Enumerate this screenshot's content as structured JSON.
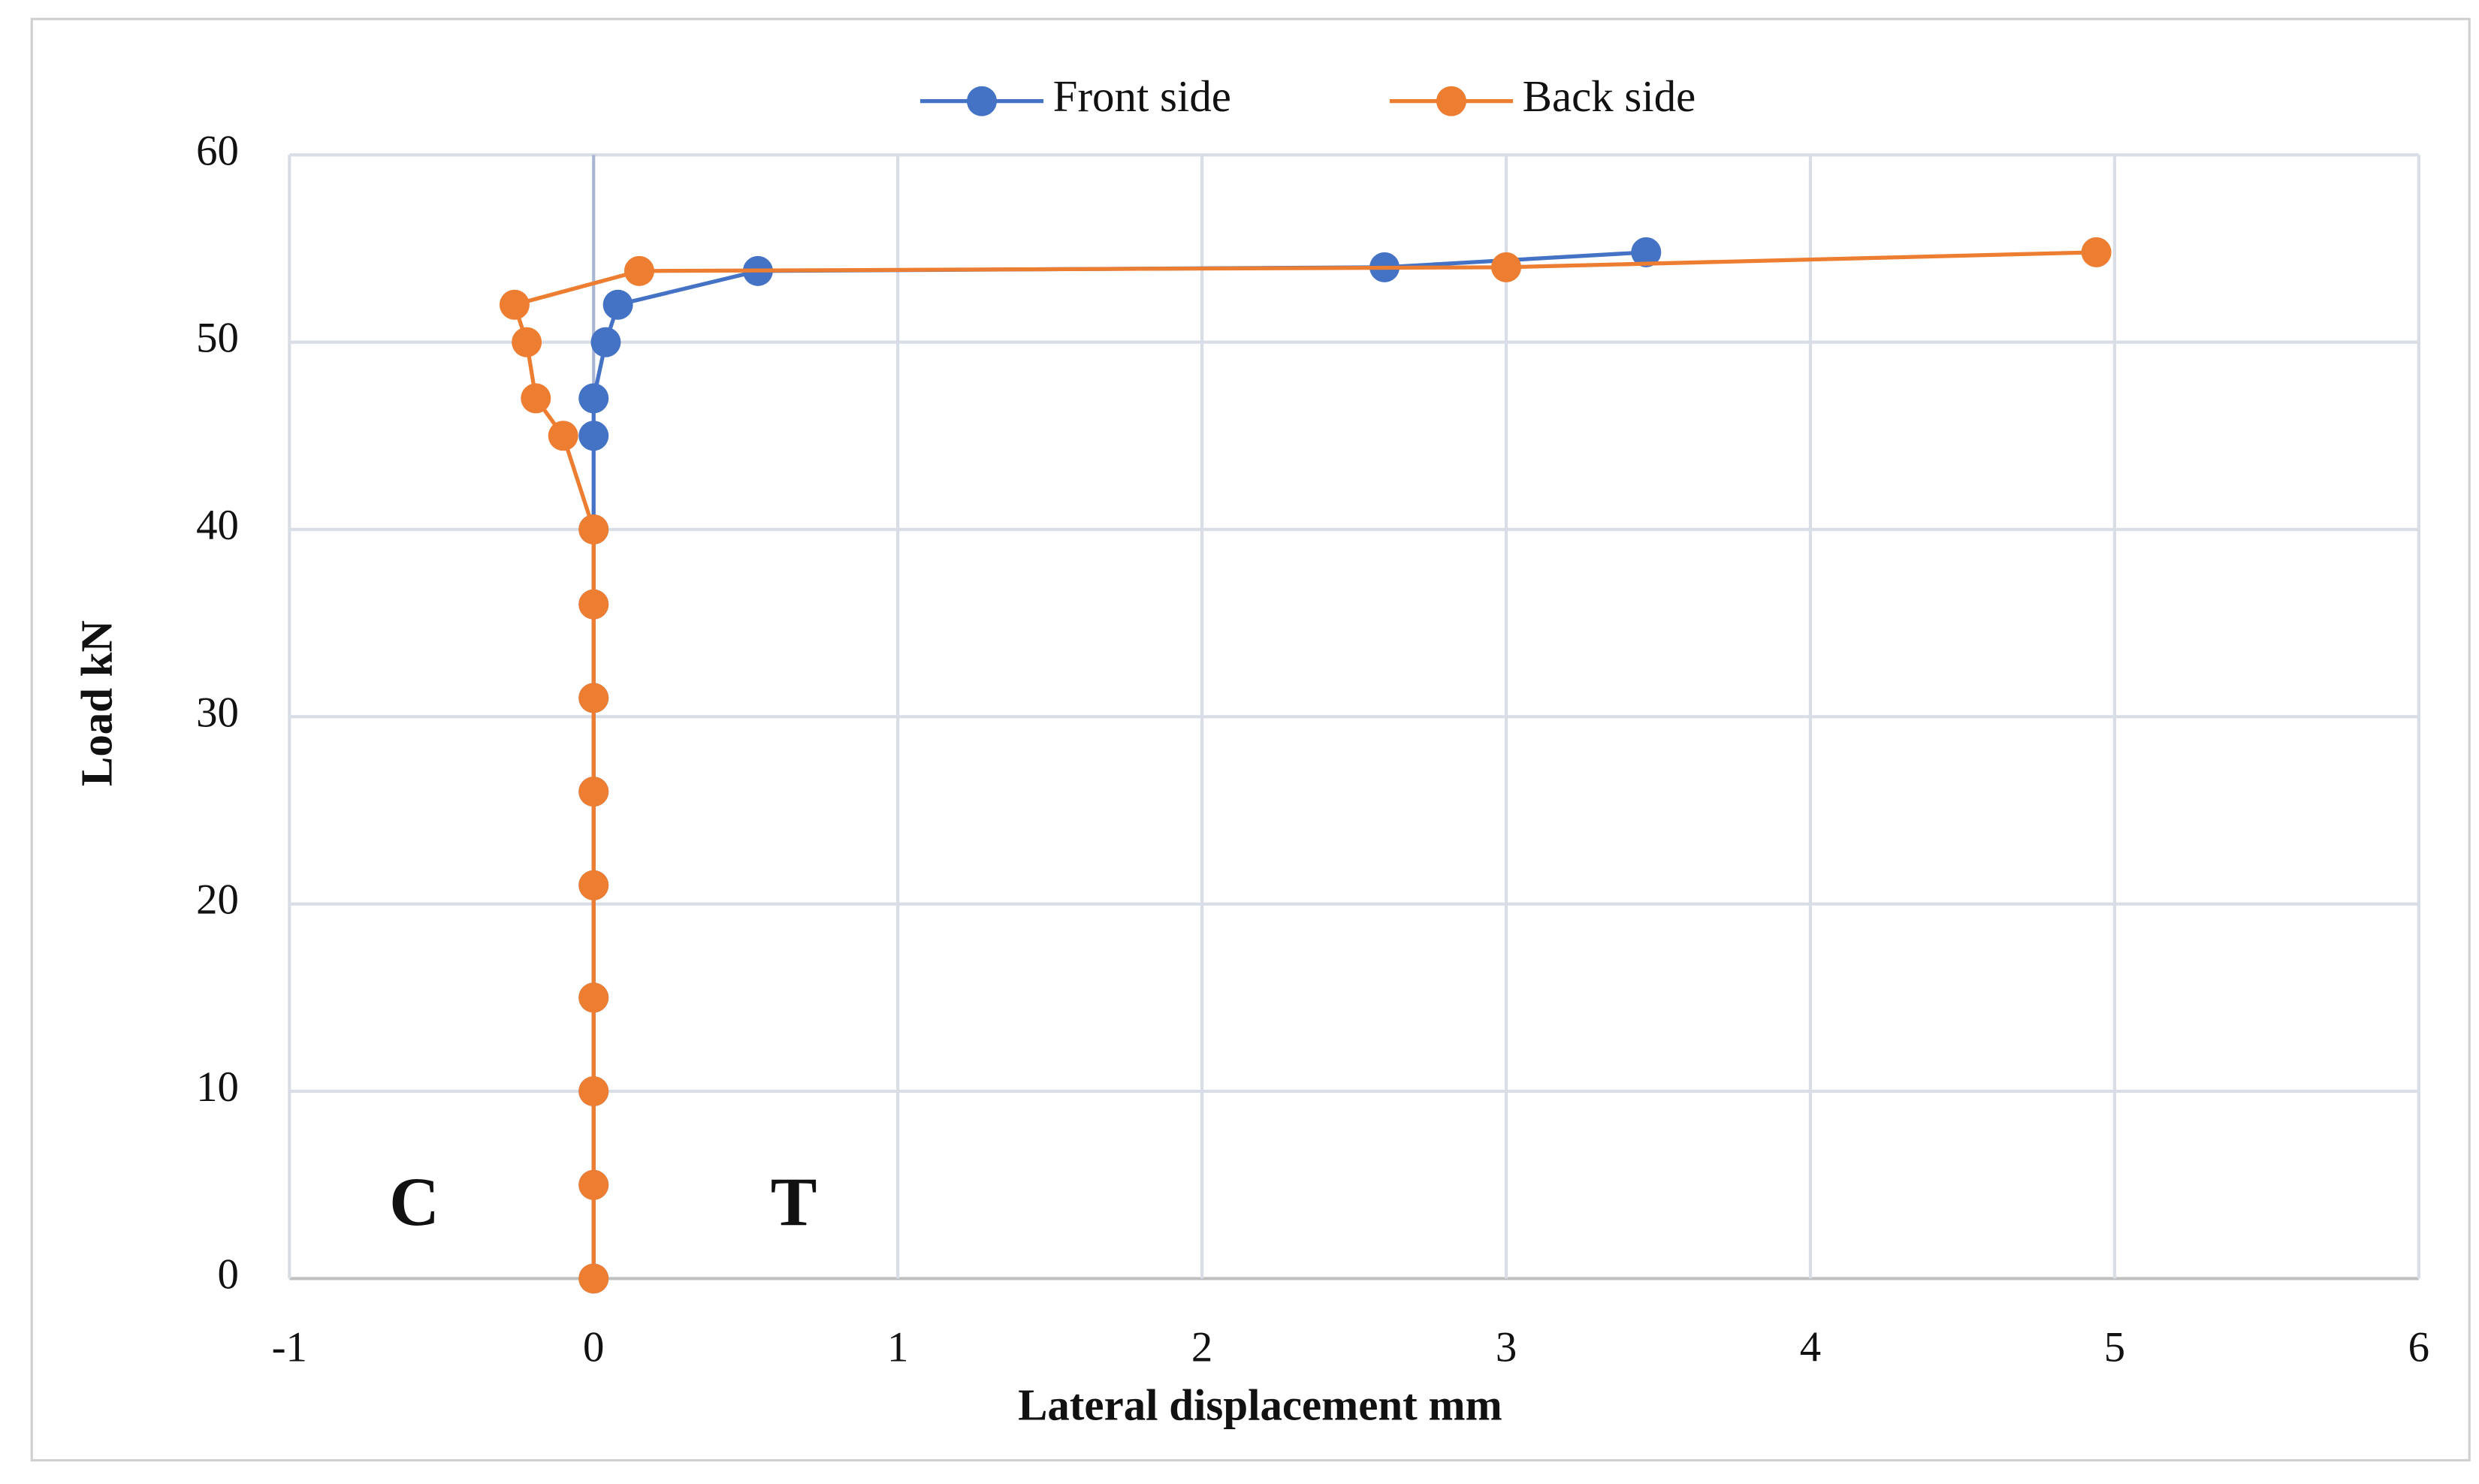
{
  "chart_data": {
    "type": "scatter",
    "x_label": "Lateral displacement mm",
    "y_label": "Load kN",
    "xlim": [
      -1,
      6
    ],
    "xticks": [
      -1,
      0,
      1,
      2,
      3,
      4,
      5,
      6
    ],
    "ylim": [
      0,
      60
    ],
    "yticks": [
      0,
      10,
      20,
      30,
      40,
      50,
      60
    ],
    "grid": true,
    "legend": "top",
    "annotations": [
      "C",
      "T"
    ],
    "series": [
      {
        "name": "Front side",
        "color": "#4472c4",
        "x": [
          0,
          0,
          0,
          0,
          0,
          0,
          0,
          0,
          0,
          0,
          0,
          0.04,
          0.08,
          0.54,
          2.6,
          3.46
        ],
        "values": [
          0,
          5,
          10,
          15,
          21,
          26,
          31,
          36,
          40,
          45,
          47,
          50,
          52,
          53.8,
          54,
          54.8
        ]
      },
      {
        "name": "Back side",
        "color": "#ed7d31",
        "x": [
          0,
          0,
          0,
          0,
          0,
          0,
          0,
          0,
          0,
          -0.1,
          -0.19,
          -0.22,
          -0.26,
          0.15,
          3,
          4.94
        ],
        "values": [
          0,
          5,
          10,
          15,
          21,
          26,
          31,
          36,
          40,
          45,
          47,
          50,
          52,
          53.8,
          54,
          54.8
        ]
      }
    ]
  }
}
